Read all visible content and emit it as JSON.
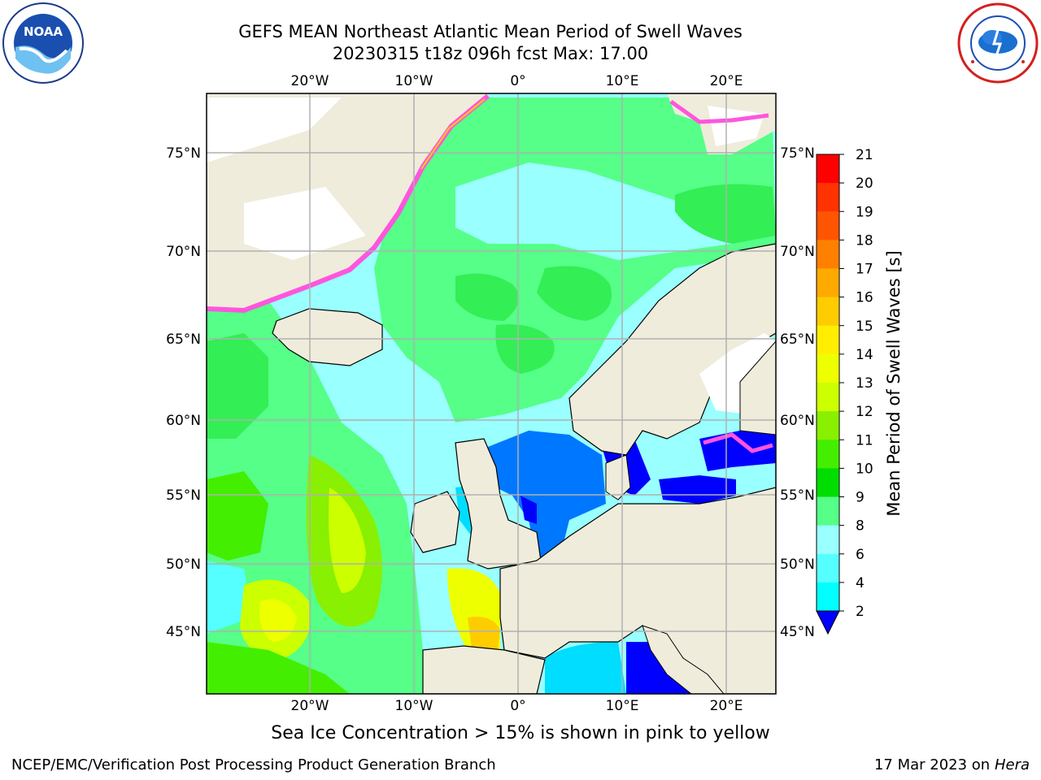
{
  "title": {
    "line1": "GEFS MEAN Northeast Atlantic Mean Period of Swell Waves",
    "line2": "20230315 t18z 096h fcst   Max: 17.00"
  },
  "map": {
    "lon_labels": [
      "20°W",
      "10°W",
      "0°",
      "10°E",
      "20°E"
    ],
    "lat_labels": [
      "75°N",
      "70°N",
      "65°N",
      "60°N",
      "55°N",
      "50°N",
      "45°N"
    ],
    "colors": {
      "land": "#efecdc",
      "ice": "#ffffff",
      "grid": "#b0b0b0"
    }
  },
  "colorbar": {
    "label": "Mean Period of Swell Waves [s]",
    "ticks": [
      "21",
      "20",
      "19",
      "18",
      "17",
      "16",
      "15",
      "14",
      "13",
      "12",
      "11",
      "10",
      "9",
      "8",
      "6",
      "4",
      "2"
    ],
    "colors": [
      "#ff0000",
      "#ff3300",
      "#ff5500",
      "#ff8000",
      "#ffaa00",
      "#ffcc00",
      "#ffee00",
      "#eeff00",
      "#ccff00",
      "#88f000",
      "#44ee00",
      "#00dd00",
      "#55ff88",
      "#99ffff",
      "#55ffff",
      "#00ffff",
      "#00ddff",
      "#0077ff"
    ],
    "under_color": "#0000ff"
  },
  "caption": "Sea Ice Concentration > 15% is shown in pink to yellow",
  "footer": {
    "left": "NCEP/EMC/Verification Post Processing Product Generation Branch",
    "right_date": "17 Mar 2023 on",
    "right_host": "Hera"
  }
}
